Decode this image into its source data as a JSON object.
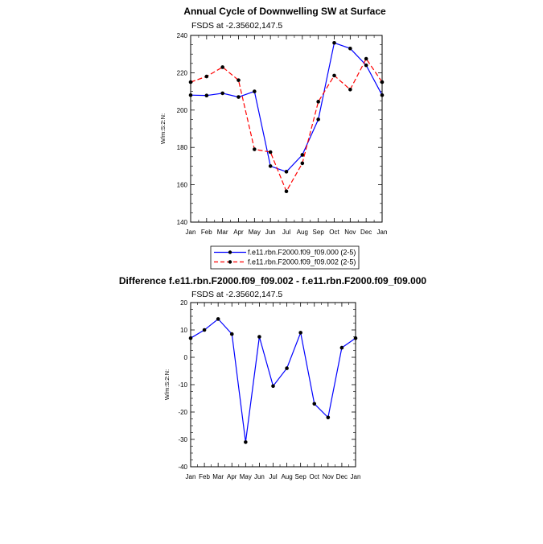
{
  "chart_data": [
    {
      "type": "line",
      "title": "Annual Cycle of Downwelling SW at Surface",
      "subtitle": "FSDS at -2.35602,147.5",
      "ylabel": "W/m:S:2:N:",
      "xlabel": "",
      "categories": [
        "Jan",
        "Feb",
        "Mar",
        "Apr",
        "May",
        "Jun",
        "Jul",
        "Aug",
        "Sep",
        "Oct",
        "Nov",
        "Dec",
        "Jan"
      ],
      "ylim": [
        140,
        240
      ],
      "yticks": [
        140,
        160,
        180,
        200,
        220,
        240
      ],
      "grid": false,
      "legend_position": "bottom",
      "series": [
        {
          "name": "f.e11.rbn.F2000.f09_f09.000 (2-5)",
          "color": "#0000ff",
          "dash": "solid",
          "values": [
            208,
            207.8,
            209,
            207,
            210,
            170,
            167,
            176,
            195,
            236,
            233,
            224,
            208
          ]
        },
        {
          "name": "f.e11.rbn.F2000.f09_f09.002 (2-5)",
          "color": "#ff0000",
          "dash": "dashed",
          "values": [
            215,
            218,
            223,
            216,
            179,
            177.5,
            156.5,
            171.5,
            204.5,
            218.5,
            211,
            227.5,
            215
          ]
        }
      ]
    },
    {
      "type": "line",
      "title": "Difference f.e11.rbn.F2000.f09_f09.002 - f.e11.rbn.F2000.f09_f09.000",
      "subtitle": "FSDS at -2.35602,147.5",
      "ylabel": "W/m:S:2:N:",
      "xlabel": "",
      "categories": [
        "Jan",
        "Feb",
        "Mar",
        "Apr",
        "May",
        "Jun",
        "Jul",
        "Aug",
        "Sep",
        "Oct",
        "Nov",
        "Dec",
        "Jan"
      ],
      "ylim": [
        -40,
        20
      ],
      "yticks": [
        -40,
        -30,
        -20,
        -10,
        0,
        10,
        20
      ],
      "grid": false,
      "series": [
        {
          "color": "#0000ff",
          "dash": "solid",
          "values": [
            7,
            10,
            14,
            8.5,
            -31,
            7.5,
            -10.5,
            -4,
            9,
            -17,
            -22,
            3.5,
            7
          ]
        }
      ]
    }
  ]
}
